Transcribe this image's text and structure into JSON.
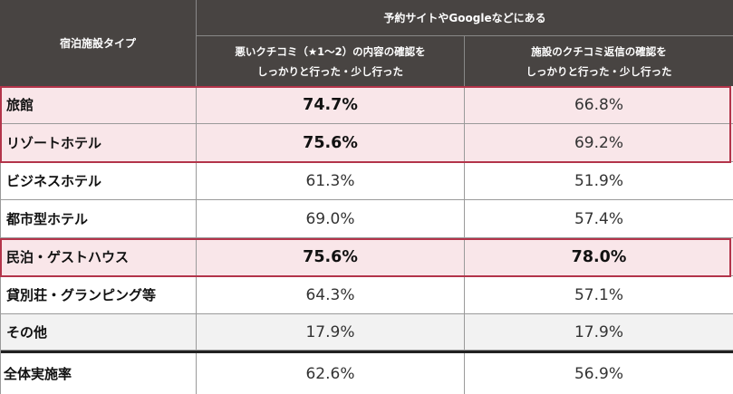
{
  "header": {
    "type_label": "宿泊施設タイプ",
    "group_label": "予約サイトやGoogleなどにある",
    "col1_line1": "悪いクチコミ（★1～2）の内容の確認を",
    "col1_line2": "しっかりと行った・少し行った",
    "col2_line1": "施設のクチコミ返信の確認を",
    "col2_line2": "しっかりと行った・少し行った"
  },
  "rows": [
    {
      "label": "旅館",
      "v1": "74.7%",
      "v2": "66.8%"
    },
    {
      "label": "リゾートホテル",
      "v1": "75.6%",
      "v2": "69.2%"
    },
    {
      "label": "ビジネスホテル",
      "v1": "61.3%",
      "v2": "51.9%"
    },
    {
      "label": "都市型ホテル",
      "v1": "69.0%",
      "v2": "57.4%"
    },
    {
      "label": "民泊・ゲストハウス",
      "v1": "75.6%",
      "v2": "78.0%"
    },
    {
      "label": "貸別荘・グランピング等",
      "v1": "64.3%",
      "v2": "57.1%"
    },
    {
      "label": "その他",
      "v1": "17.9%",
      "v2": "17.9%"
    },
    {
      "label": "全体実施率",
      "v1": "62.6%",
      "v2": "56.9%"
    }
  ],
  "colors": {
    "header_bg": "#484442",
    "highlight_bg": "#f9e6e9",
    "highlight_border": "#b3344a",
    "other_row_bg": "#f2f2f2"
  }
}
